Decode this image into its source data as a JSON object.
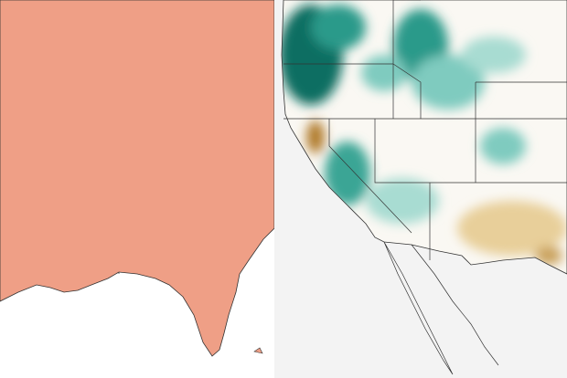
{
  "panels": [
    {
      "id": "left",
      "region": "eastern-us",
      "land_color": "#ef9f86",
      "light_spot_color": "#e4dfe0",
      "ocean_color": "#ffffff",
      "border_color": "#333333"
    },
    {
      "id": "right",
      "region": "western-us",
      "land_color": "#faf8f3",
      "wet_color": "#0e6e62",
      "moist_color": "#7fcbbf",
      "dry_color": "#c9a05a",
      "ocean_color": "#f3f3f3",
      "border_color": "#333333"
    }
  ]
}
